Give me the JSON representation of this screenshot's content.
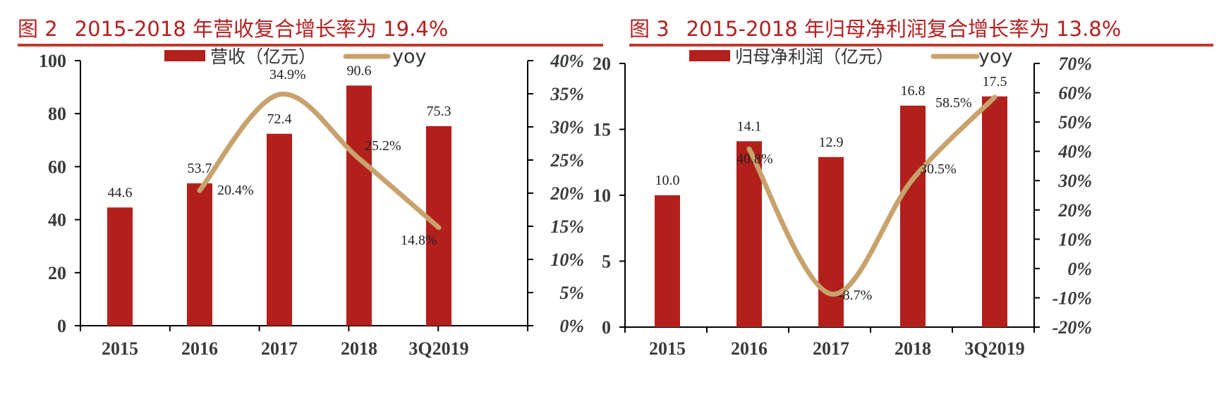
{
  "charts": [
    {
      "title_num": "图 2",
      "title_text": "2015-2018 年营收复合增长率为 19.4%",
      "legend": {
        "bar": "营收（亿元）",
        "line": "yoy"
      },
      "left_ticks": [
        "0",
        "20",
        "40",
        "60",
        "80",
        "100"
      ],
      "right_ticks": [
        "0%",
        "5%",
        "10%",
        "15%",
        "20%",
        "25%",
        "30%",
        "35%",
        "40%"
      ],
      "bar_labels": [
        "44.6",
        "53.7",
        "72.4",
        "90.6",
        "75.3"
      ],
      "line_labels": [
        "20.4%",
        "34.9%",
        "25.2%",
        "14.8%"
      ]
    },
    {
      "title_num": "图 3",
      "title_text": "2015-2018 年归母净利润复合增长率为 13.8%",
      "legend": {
        "bar": "归母净利润（亿元）",
        "line": "yoy"
      },
      "left_ticks": [
        "0",
        "5",
        "10",
        "15",
        "20"
      ],
      "right_ticks": [
        "-20%",
        "-10%",
        "0%",
        "10%",
        "20%",
        "30%",
        "40%",
        "50%",
        "60%",
        "70%"
      ],
      "bar_labels": [
        "10.0",
        "14.1",
        "12.9",
        "16.8",
        "17.5"
      ],
      "line_labels": [
        "40.8%",
        "-8.7%",
        "30.5%",
        "58.5%"
      ]
    }
  ],
  "chart_data": [
    {
      "type": "bar",
      "title": "2015-2018 年营收复合增长率为 19.4%",
      "categories": [
        "2015",
        "2016",
        "2017",
        "2018",
        "3Q2019"
      ],
      "series": [
        {
          "name": "营收（亿元）",
          "type": "bar",
          "axis": "left",
          "values": [
            44.6,
            53.7,
            72.4,
            90.6,
            75.3
          ]
        },
        {
          "name": "yoy",
          "type": "line",
          "axis": "right",
          "values": [
            null,
            20.4,
            34.9,
            25.2,
            14.8
          ]
        }
      ],
      "ylim": [
        0,
        100
      ],
      "y2lim": [
        0,
        40
      ],
      "legend_position": "top",
      "grid": false
    },
    {
      "type": "bar",
      "title": "2015-2018 年归母净利润复合增长率为 13.8%",
      "categories": [
        "2015",
        "2016",
        "2017",
        "2018",
        "3Q2019"
      ],
      "series": [
        {
          "name": "归母净利润（亿元）",
          "type": "bar",
          "axis": "left",
          "values": [
            10.0,
            14.1,
            12.9,
            16.8,
            17.5
          ]
        },
        {
          "name": "yoy",
          "type": "line",
          "axis": "right",
          "values": [
            null,
            40.8,
            -8.7,
            30.5,
            58.5
          ]
        }
      ],
      "ylim": [
        0,
        20
      ],
      "y2lim": [
        -20,
        70
      ],
      "legend_position": "top",
      "grid": false
    }
  ]
}
